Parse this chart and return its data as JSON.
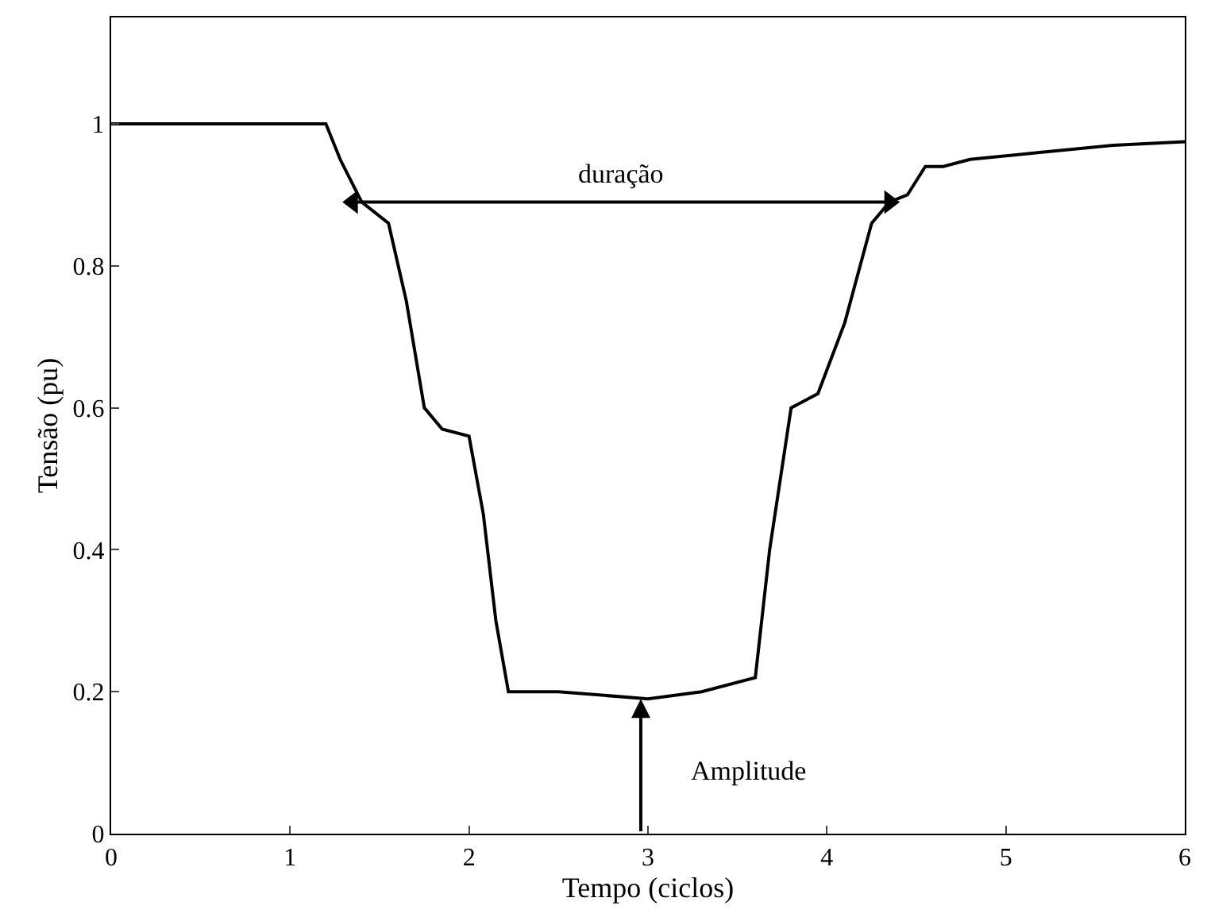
{
  "chart_data": {
    "type": "line",
    "xlabel": "Tempo (ciclos)",
    "ylabel": "Tensão (pu)",
    "x": [
      0,
      1.2,
      1.28,
      1.4,
      1.55,
      1.65,
      1.75,
      1.85,
      2.0,
      2.08,
      2.15,
      2.22,
      2.5,
      3.0,
      3.3,
      3.6,
      3.68,
      3.8,
      3.95,
      4.1,
      4.25,
      4.35,
      4.45,
      4.55,
      4.65,
      4.8,
      5.2,
      5.6,
      6.0
    ],
    "series": [
      {
        "type": "line",
        "x": [
          1.35,
          4.35
        ],
        "values": [
          0.89,
          0.89
        ],
        "color": "#000000",
        "marker": "triangle"
      },
      {
        "color": "#000000",
        "values": [
          1.0,
          1.0,
          0.95,
          0.89,
          0.86,
          0.75,
          0.6,
          0.57,
          0.56,
          0.45,
          0.3,
          0.2,
          0.2,
          0.19,
          0.2,
          0.22,
          0.4,
          0.6,
          0.62,
          0.72,
          0.86,
          0.89,
          0.9,
          0.94,
          0.94,
          0.95,
          0.96,
          0.97,
          0.975
        ]
      }
    ],
    "annotations": [
      {
        "text": "duração",
        "x": 2.85,
        "y": 0.89
      },
      {
        "text": "Amplitude",
        "x": 2.96,
        "y": 0.19
      }
    ],
    "xlim": [
      0,
      6
    ],
    "ylim": [
      0,
      1.15
    ],
    "xticks": [
      0,
      1,
      2,
      3,
      4,
      5,
      6
    ],
    "yticks": [
      0,
      0.2,
      0.4,
      0.6,
      0.8,
      1
    ],
    "marker": "none",
    "line_style": "solid"
  }
}
